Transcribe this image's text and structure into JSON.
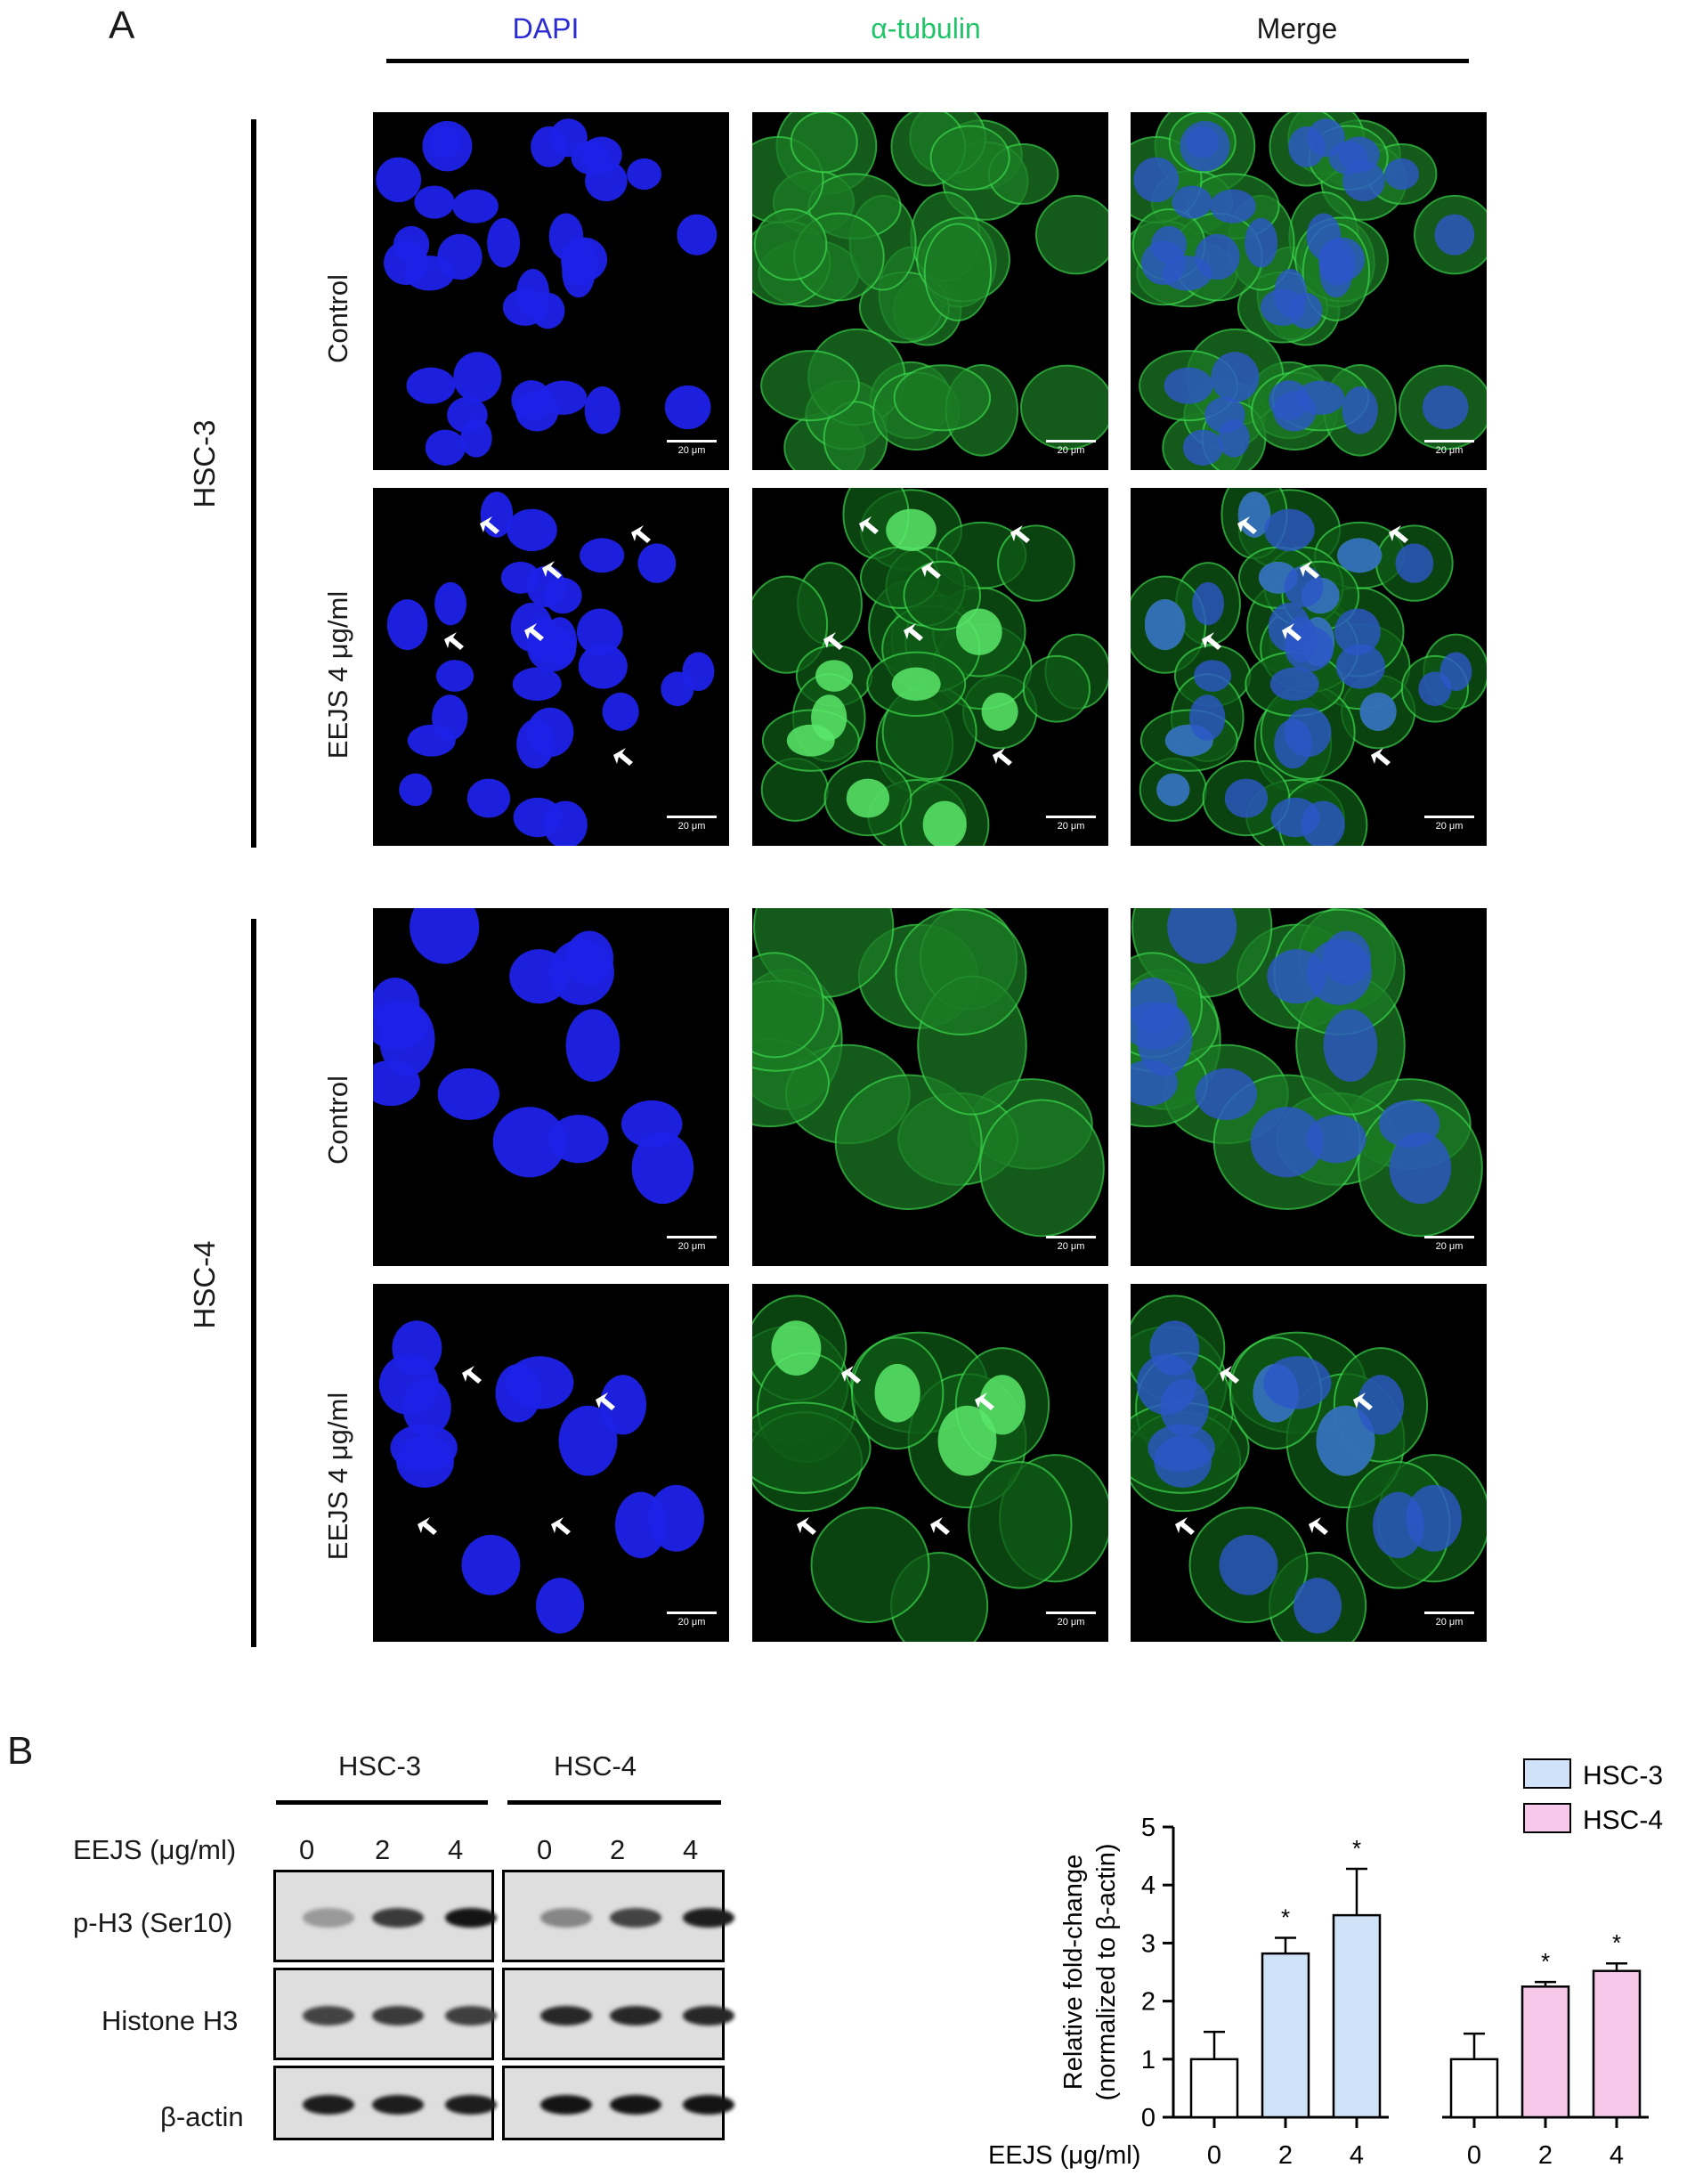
{
  "figure": {
    "panel_a_letter": "A",
    "panel_b_letter": "B"
  },
  "panel_a": {
    "columns": [
      "DAPI",
      "α-tubulin",
      "Merge"
    ],
    "column_colors": [
      "#2b2bd6",
      "#22c46a",
      "#1a1a1a"
    ],
    "cell_lines": [
      "HSC-3",
      "HSC-4"
    ],
    "rows": [
      "Control",
      "EEJS 4 μg/ml"
    ],
    "scale_bar_label": "20 μm"
  },
  "panel_b": {
    "blot": {
      "groups": [
        "HSC-3",
        "HSC-4"
      ],
      "dose_label": "EEJS (μg/ml)",
      "doses": [
        "0",
        "2",
        "4",
        "0",
        "2",
        "4"
      ],
      "proteins": [
        "p-H3 (Ser10)",
        "Histone H3",
        "β-actin"
      ]
    }
  },
  "chart_data": {
    "type": "bar",
    "ylabel_line1": "Relative fold-change",
    "ylabel_line2": "(normalized to β-actin)",
    "xlabel": "EEJS (μg/ml)",
    "ylim": [
      0,
      5
    ],
    "yticks": [
      "0",
      "1",
      "2",
      "3",
      "4",
      "5"
    ],
    "groups": [
      {
        "name": "HSC-3",
        "color": "#cfe2f7",
        "bars": [
          {
            "x": "0",
            "value": 1.0,
            "err": 0.47,
            "sig": "",
            "fill": "#ffffff"
          },
          {
            "x": "2",
            "value": 2.82,
            "err": 0.27,
            "sig": "*",
            "fill": "#cfe2f7"
          },
          {
            "x": "4",
            "value": 3.48,
            "err": 0.8,
            "sig": "*",
            "fill": "#cfe2f7"
          }
        ]
      },
      {
        "name": "HSC-4",
        "color": "#f7c8ea",
        "bars": [
          {
            "x": "0",
            "value": 1.0,
            "err": 0.44,
            "sig": "",
            "fill": "#ffffff"
          },
          {
            "x": "2",
            "value": 2.25,
            "err": 0.08,
            "sig": "*",
            "fill": "#f7c8ea"
          },
          {
            "x": "4",
            "value": 2.52,
            "err": 0.13,
            "sig": "*",
            "fill": "#f7c8ea"
          }
        ]
      }
    ],
    "legend": [
      "HSC-3",
      "HSC-4"
    ],
    "legend_position": "top-right"
  }
}
